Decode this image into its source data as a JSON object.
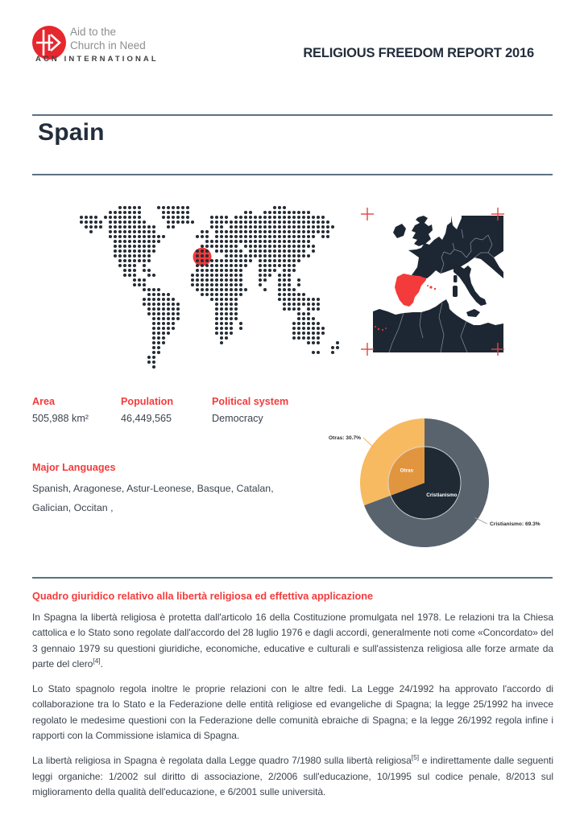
{
  "colors": {
    "accent_red": "#f43b3b",
    "logo_red": "#e6272e",
    "crosshair_red": "#e24444",
    "title_navy": "#232d3b",
    "body_text": "#3c434d",
    "divider": "#5c7183",
    "org_gray": "#8e8e8e",
    "org_dark": "#3f3f3f",
    "map_dot": "#262d36",
    "map_land": "#1d2733",
    "map_sea": "#ffffff",
    "map_border": "#9aa2ab",
    "pie_outer_main": "#59636d",
    "pie_outer_other": "#f8ba61",
    "pie_inner_main": "#1f2a35",
    "pie_inner_other": "#e2953f",
    "pie_leader_main": "#9aa0a6",
    "pie_leader_other": "#f0b05a",
    "pie_label_text": "#2e2e2e"
  },
  "header": {
    "org_line1": "Aid to the",
    "org_line2": "Church in Need",
    "org_sub": "ACN INTERNATIONAL",
    "report_title": "RELIGIOUS FREEDOM REPORT 2016"
  },
  "country": {
    "name": "Spain"
  },
  "world_map": {
    "highlight": {
      "label": "Spain",
      "col": 27,
      "row": 10.2
    },
    "rows": [
      "..........11111...1111111.................111...........",
      "........1111111....111111...........11..1111111111......",
      "..1111.11111111....111111....1111.1111111111111111111...",
      "..11111.11111111....111111...1111111111111111111111111..",
      "...1111.1111111111..11.......111.1111111111111111111111.",
      "....1...1111111111.........11.111111111111111111111111..",
      "........111111111111......111.111111111111111111111.11..",
      ".........1111111111.........1111111111111111111111......",
      ".........111111111.........11111111.111111111111111.....",
      ".........111111111........111.111111.111111111111.1.....",
      ".........11111111.........111...111111111111111111......",
      "..........1111111.........111111111111.111111111........",
      "..........1111.1..........11111111111..11111111.........",
      "...........111.11.........1111111111...1111.111.........",
      "...........111..11.......11111111111...111.111..........",
      ".............111.........11111111111...11..111.1........",
      ".............111.........11111111111...1...111.1........",
      "...............1111.......11111111111...1..1111.........",
      "................11111......111111111.......111111.......",
      "...............1111111.......111111........111111111....",
      "...............11111111.......11111.........11111111....",
      "................1111111.......11111.........1111.111....",
      "................1111111.......11111............111......",
      ".................111111.......11111............1111.....",
      ".................11111........1111.1..........111111....",
      ".................11111........1111.1..........1111111...",
      ".................1111.........1111............1111111...",
      ".................111...........11.............111111....",
      ".................111...........1.................111...1",
      ".................11...................................11",
      ".................11...............................11..1.",
      "................11......................................",
      "................11......................................",
      ".................1......................................"
    ]
  },
  "stats": [
    {
      "label": "Area",
      "value": "505,988 km²"
    },
    {
      "label": "Population",
      "value": "46,449,565"
    },
    {
      "label": "Political system",
      "value": "Democracy"
    }
  ],
  "languages": {
    "label": "Major Languages",
    "value": "Spanish, Aragonese, Astur-Leonese, Basque, Catalan, Galician, Occitan ,"
  },
  "chart_data": {
    "type": "pie",
    "style": "two-level-donut",
    "series": [
      {
        "name": "Cristianismo",
        "value": 69.3,
        "callout_label": "Cristianismo: 69.3%"
      },
      {
        "name": "Otras",
        "value": 30.7,
        "callout_label": "Otras: 30.7%"
      }
    ],
    "legend_position": "callout-labels"
  },
  "section": {
    "heading": "Quadro giuridico relativo alla libertà religiosa ed effettiva applicazione",
    "paragraphs": [
      [
        {
          "t": "In Spagna la libertà religiosa è protetta dall'articolo 16 della Costituzione promulgata nel 1978. Le relazioni tra la Chiesa cattolica e lo Stato sono regolate dall'accordo del 28 luglio 1976 e dagli accordi, generalmente noti come «Concordato» del 3 gennaio 1979 su questioni giuridiche, economiche, educative e culturali e sull'assistenza religiosa alle forze armate da parte del clero"
        },
        {
          "sup": "[4]"
        },
        {
          "t": "."
        }
      ],
      [
        {
          "t": "Lo Stato spagnolo regola inoltre le proprie relazioni con le altre fedi. La Legge 24/1992 ha approvato l'accordo di collaborazione tra lo Stato e la Federazione delle entità religiose ed evangeliche di Spagna; la legge 25/1992 ha invece regolato le medesime questioni con la Federazione delle comunità ebraiche di Spagna; e la legge 26/1992 regola infine i rapporti con la Commissione islamica di Spagna."
        }
      ],
      [
        {
          "t": "La libertà religiosa in Spagna è regolata dalla Legge quadro 7/1980 sulla libertà religiosa"
        },
        {
          "sup": "[5]"
        },
        {
          "t": " e indirettamente dalle seguenti leggi organiche: 1/2002 sul diritto di associazione, 2/2006 sull'educazione, 10/1995 sul codice penale, 8/2013 sul miglioramento della qualità dell'educazione, e 6/2001 sulle università."
        }
      ]
    ]
  }
}
